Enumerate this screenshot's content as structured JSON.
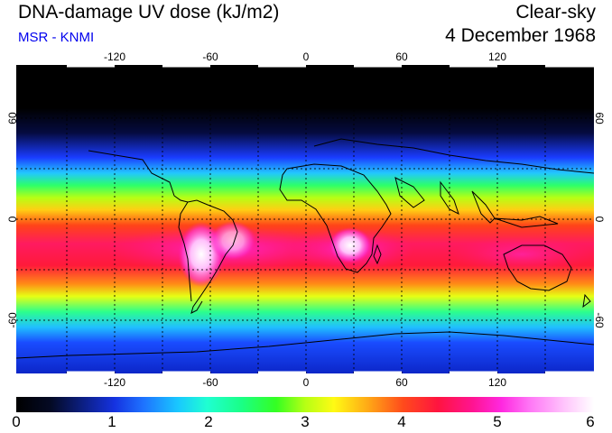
{
  "header": {
    "title": "DNA-damage UV dose (kJ/m2)",
    "subtitle": "MSR - KNMI",
    "condition": "Clear-sky",
    "date": "4 December 1968"
  },
  "map": {
    "lon_ticks": [
      "-120",
      "-60",
      "0",
      "60",
      "120"
    ],
    "lat_ticks": [
      "60",
      "0",
      "-60"
    ],
    "colors": {
      "frame": "#000000",
      "coastline": "#000000",
      "grid": "#000000",
      "white_peak": "#ffffff"
    }
  },
  "colorbar": {
    "labels": [
      "0",
      "1",
      "2",
      "3",
      "4",
      "5",
      "6"
    ],
    "min": 0,
    "max": 6
  }
}
